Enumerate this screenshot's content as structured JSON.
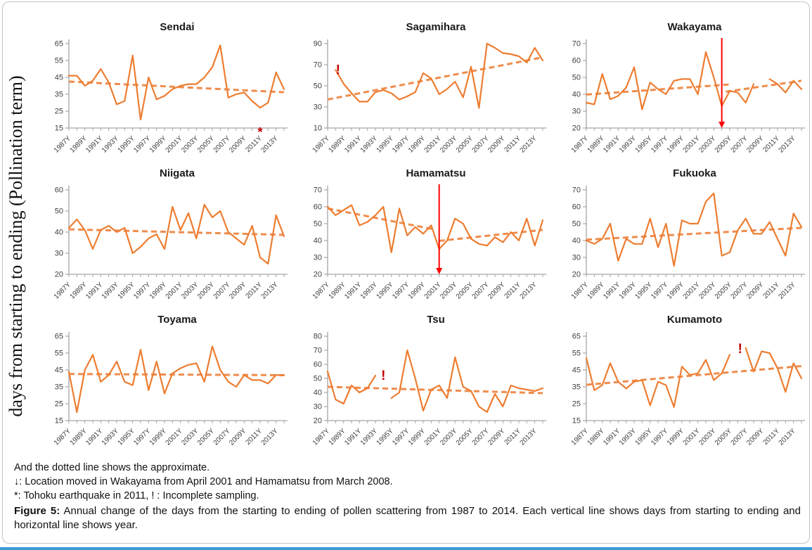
{
  "figure": {
    "y_axis_title": "days from starting to ending (Pollination term)",
    "notes": [
      "And the dotted line shows the approximate.",
      "↓: Location moved in Wakayama from April 2001 and Hamamatsu from March 2008.",
      "*: Tohoku earthquake in 2011, ! : Incomplete sampling."
    ],
    "caption_label": "Figure 5:",
    "caption_text": " Annual change of the days from the starting to ending of pollen scattering from 1987 to 2014. Each vertical line shows days from starting to ending and horizontal line shows year."
  },
  "colors": {
    "series": "#ED7D31",
    "trend": "#EF8C4D",
    "annotation_red": "#C00000",
    "arrow_red": "#FF0000",
    "axis": "#a6a6a6",
    "tick_text": "#404040",
    "bottom_bar": "#3e9bd5"
  },
  "chart_data": [
    {
      "type": "line",
      "title": "Sendai",
      "x_range": [
        1987,
        2014
      ],
      "x_tick_labels": [
        "1987Y",
        "1989Y",
        "1991Y",
        "1993Y",
        "1995Y",
        "1997Y",
        "1999Y",
        "2001Y",
        "2003Y",
        "2005Y",
        "2007Y",
        "2009Y",
        "2011Y",
        "2013Y"
      ],
      "ylim": [
        15,
        65
      ],
      "y_ticks": [
        15,
        25,
        35,
        45,
        55,
        65
      ],
      "values": [
        46,
        46,
        40,
        43,
        50,
        42,
        29,
        31,
        58,
        20,
        45,
        32,
        34,
        38,
        40,
        41,
        41,
        45,
        51,
        64,
        33,
        35,
        36,
        31,
        27,
        30,
        48,
        38
      ],
      "trend_segments": [
        {
          "x1": 1987,
          "y1": 42.5,
          "x2": 2014,
          "y2": 36.2
        }
      ],
      "annotations": [
        {
          "type": "asterisk",
          "x": 2011
        }
      ]
    },
    {
      "type": "line",
      "title": "Sagamihara",
      "x_range": [
        1987,
        2014
      ],
      "x_tick_labels": [
        "1987Y",
        "1989Y",
        "1991Y",
        "1993Y",
        "1995Y",
        "1997Y",
        "1999Y",
        "2001Y",
        "2003Y",
        "2005Y",
        "2007Y",
        "2009Y",
        "2011Y",
        "2013Y"
      ],
      "ylim": [
        10,
        90
      ],
      "y_ticks": [
        10,
        30,
        50,
        70,
        90
      ],
      "values": [
        null,
        65,
        52,
        43,
        35,
        35,
        44,
        46,
        43,
        37,
        40,
        44,
        62,
        57,
        42,
        47,
        54,
        39,
        68,
        29,
        90,
        86,
        81,
        80,
        78,
        72,
        86,
        74
      ],
      "trend_segments": [
        {
          "x1": 1987,
          "y1": 37,
          "x2": 2014,
          "y2": 77
        }
      ],
      "annotations": [
        {
          "type": "exclaim",
          "x": 1988.3,
          "y": 61
        }
      ]
    },
    {
      "type": "line",
      "title": "Wakayama",
      "x_range": [
        1987,
        2014
      ],
      "x_tick_labels": [
        "1987Y",
        "1989Y",
        "1991Y",
        "1993Y",
        "1995Y",
        "1997Y",
        "1999Y",
        "2001Y",
        "2003Y",
        "2005Y",
        "2007Y",
        "2009Y",
        "2011Y",
        "2013Y"
      ],
      "ylim": [
        20,
        70
      ],
      "y_ticks": [
        20,
        30,
        40,
        50,
        60,
        70
      ],
      "values": [
        35,
        34,
        52,
        37,
        39,
        44,
        56,
        31,
        47,
        43,
        40,
        48,
        49,
        49,
        40,
        65,
        50,
        33,
        42,
        41,
        35,
        46,
        null,
        49,
        46,
        41,
        48,
        43
      ],
      "trend_segments": [
        {
          "x1": 1987,
          "y1": 39.8,
          "x2": 2005,
          "y2": 45.8
        },
        {
          "x1": 2004.5,
          "y1": 41.5,
          "x2": 2014,
          "y2": 48
        }
      ],
      "annotations": [
        {
          "type": "arrow-down",
          "x": 2004
        }
      ]
    },
    {
      "type": "line",
      "title": "Niigata",
      "x_range": [
        1987,
        2014
      ],
      "x_tick_labels": [
        "1987Y",
        "1989Y",
        "1991Y",
        "1993Y",
        "1995Y",
        "1997Y",
        "1999Y",
        "2001Y",
        "2003Y",
        "2005Y",
        "2007Y",
        "2009Y",
        "2011Y",
        "2013Y"
      ],
      "ylim": [
        20,
        60
      ],
      "y_ticks": [
        20,
        30,
        40,
        50,
        60
      ],
      "values": [
        42,
        46,
        41,
        32,
        41,
        43,
        40,
        42,
        30,
        33,
        37,
        39,
        32,
        52,
        41,
        49,
        37,
        53,
        47,
        50,
        40,
        37,
        34,
        43,
        28,
        25,
        48,
        38
      ],
      "trend_segments": [
        {
          "x1": 1987,
          "y1": 41.3,
          "x2": 2014,
          "y2": 38.7
        }
      ],
      "annotations": []
    },
    {
      "type": "line",
      "title": "Hamamatsu",
      "x_range": [
        1987,
        2014
      ],
      "x_tick_labels": [
        "1987Y",
        "1989Y",
        "1991Y",
        "1993Y",
        "1995Y",
        "1997Y",
        "1999Y",
        "2001Y",
        "2003Y",
        "2005Y",
        "2007Y",
        "2009Y",
        "2011Y",
        "2013Y"
      ],
      "ylim": [
        20,
        70
      ],
      "y_ticks": [
        20,
        30,
        40,
        50,
        60,
        70
      ],
      "values": [
        60,
        55,
        58,
        61,
        49,
        51,
        55,
        60,
        33,
        59,
        43,
        48,
        44,
        49,
        35,
        40,
        53,
        50,
        41,
        38,
        37,
        42,
        39,
        45,
        40,
        53,
        37,
        52
      ],
      "trend_segments": [
        {
          "x1": 1987,
          "y1": 59,
          "x2": 2000.5,
          "y2": 46.5
        },
        {
          "x1": 2001,
          "y1": 39.8,
          "x2": 2014,
          "y2": 46.3
        }
      ],
      "annotations": [
        {
          "type": "arrow-down",
          "x": 2001
        }
      ]
    },
    {
      "type": "line",
      "title": "Fukuoka",
      "x_range": [
        1987,
        2014
      ],
      "x_tick_labels": [
        "1987Y",
        "1989Y",
        "1991Y",
        "1993Y",
        "1995Y",
        "1997Y",
        "1999Y",
        "2001Y",
        "2003Y",
        "2005Y",
        "2007Y",
        "2009Y",
        "2011Y",
        "2013Y"
      ],
      "ylim": [
        20,
        70
      ],
      "y_ticks": [
        20,
        30,
        40,
        50,
        60,
        70
      ],
      "values": [
        40,
        38,
        41,
        50,
        28,
        41,
        38,
        38,
        53,
        36,
        50,
        25,
        52,
        50,
        50,
        63,
        68,
        31,
        33,
        46,
        53,
        44,
        44,
        51,
        41,
        31,
        56,
        48
      ],
      "trend_segments": [
        {
          "x1": 1987,
          "y1": 40.5,
          "x2": 2014,
          "y2": 47.5
        }
      ],
      "annotations": []
    },
    {
      "type": "line",
      "title": "Toyama",
      "x_range": [
        1987,
        2014
      ],
      "x_tick_labels": [
        "1987Y",
        "1989Y",
        "1991Y",
        "1993Y",
        "1995Y",
        "1997Y",
        "1999Y",
        "2001Y",
        "2003Y",
        "2005Y",
        "2007Y",
        "2009Y",
        "2011Y",
        "2013Y"
      ],
      "ylim": [
        15,
        65
      ],
      "y_ticks": [
        15,
        25,
        35,
        45,
        55,
        65
      ],
      "values": [
        44,
        20,
        45,
        54,
        38,
        42,
        50,
        38,
        36,
        57,
        33,
        50,
        31,
        43,
        46,
        48,
        49,
        38,
        59,
        45,
        38,
        35,
        42,
        39,
        39,
        37,
        42,
        42
      ],
      "trend_segments": [
        {
          "x1": 1987,
          "y1": 42.6,
          "x2": 2014,
          "y2": 41.9
        }
      ],
      "annotations": []
    },
    {
      "type": "line",
      "title": "Tsu",
      "x_range": [
        1987,
        2014
      ],
      "x_tick_labels": [
        "1987Y",
        "1989Y",
        "1991Y",
        "1993Y",
        "1995Y",
        "1997Y",
        "1999Y",
        "2001Y",
        "2003Y",
        "2005Y",
        "2007Y",
        "2009Y",
        "2011Y",
        "2013Y"
      ],
      "ylim": [
        20,
        80
      ],
      "y_ticks": [
        20,
        30,
        40,
        50,
        60,
        70,
        80
      ],
      "values": [
        55,
        35,
        32,
        45,
        40,
        43,
        52,
        null,
        36,
        40,
        70,
        50,
        27,
        42,
        45,
        36,
        65,
        44,
        41,
        30,
        26,
        39,
        30,
        45,
        43,
        42,
        41,
        43
      ],
      "trend_segments": [
        {
          "x1": 1987,
          "y1": 44,
          "x2": 2014,
          "y2": 39.5
        }
      ],
      "annotations": [
        {
          "type": "exclaim",
          "x": 1994,
          "y": 49
        }
      ]
    },
    {
      "type": "line",
      "title": "Kumamoto",
      "x_range": [
        1987,
        2014
      ],
      "x_tick_labels": [
        "1987Y",
        "1989Y",
        "1991Y",
        "1993Y",
        "1995Y",
        "1997Y",
        "1999Y",
        "2001Y",
        "2003Y",
        "2005Y",
        "2007Y",
        "2009Y",
        "2011Y",
        "2013Y"
      ],
      "ylim": [
        15,
        65
      ],
      "y_ticks": [
        15,
        25,
        35,
        45,
        55,
        65
      ],
      "values": [
        52,
        33,
        36,
        49,
        38,
        34,
        38,
        39,
        24,
        38,
        36,
        23,
        47,
        42,
        43,
        51,
        39,
        43,
        54,
        null,
        58,
        44,
        56,
        55,
        46,
        32,
        49,
        40
      ],
      "trend_segments": [
        {
          "x1": 1987,
          "y1": 36.2,
          "x2": 2014,
          "y2": 47.3
        }
      ],
      "annotations": [
        {
          "type": "exclaim",
          "x": 2006.3,
          "y": 55
        }
      ]
    }
  ]
}
